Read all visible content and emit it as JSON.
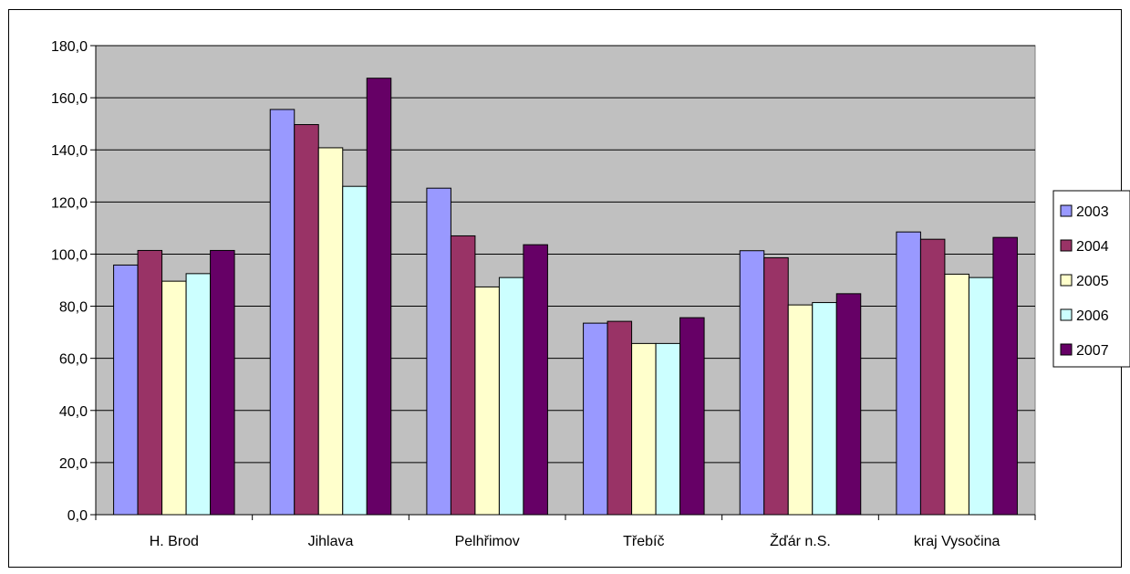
{
  "chart_data": {
    "type": "bar",
    "title": "",
    "xlabel": "",
    "ylabel": "",
    "categories": [
      "H. Brod",
      "Jihlava",
      "Pelhřimov",
      "Třebíč",
      "Žďár n.S.",
      "kraj Vysočina"
    ],
    "series": [
      {
        "name": "2003",
        "color": "#9999ff",
        "values": [
          95.8,
          155.5,
          125.3,
          73.5,
          101.3,
          108.5
        ]
      },
      {
        "name": "2004",
        "color": "#993366",
        "values": [
          101.4,
          149.7,
          107.0,
          74.2,
          98.6,
          105.7
        ]
      },
      {
        "name": "2005",
        "color": "#ffffcc",
        "values": [
          89.6,
          140.8,
          87.4,
          65.7,
          80.5,
          92.3
        ]
      },
      {
        "name": "2006",
        "color": "#ccffff",
        "values": [
          92.5,
          126.0,
          91.0,
          65.7,
          81.4,
          91.0
        ]
      },
      {
        "name": "2007",
        "color": "#660066",
        "values": [
          101.4,
          167.5,
          103.6,
          75.6,
          84.8,
          106.4
        ]
      }
    ],
    "ylim": [
      0,
      180
    ],
    "yticks": [
      "0,0",
      "20,0",
      "40,0",
      "60,0",
      "80,0",
      "100,0",
      "120,0",
      "140,0",
      "160,0",
      "180,0"
    ],
    "grid": true,
    "plot_background": "#c0c0c0",
    "legend_position": "right"
  }
}
